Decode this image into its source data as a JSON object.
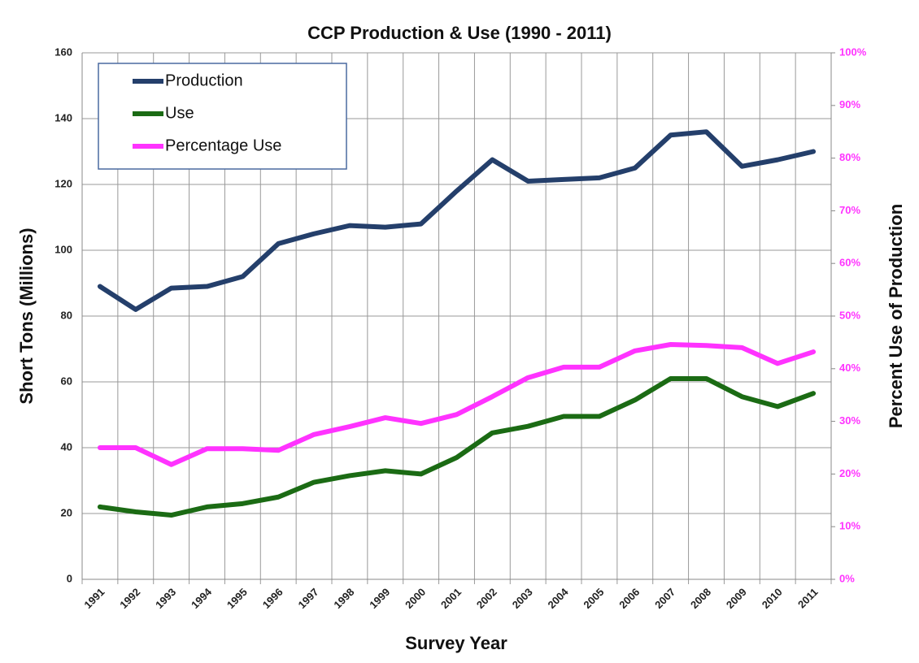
{
  "chart_data": {
    "type": "line",
    "title": "CCP Production & Use (1990 - 2011)",
    "x_label": "Survey Year",
    "y_label": "Short Tons (Millions)",
    "y2_label": "Percent Use of Production",
    "categories": [
      "1991",
      "1992",
      "1993",
      "1994",
      "1995",
      "1996",
      "1997",
      "1998",
      "1999",
      "2000",
      "2001",
      "2002",
      "2003",
      "2004",
      "2005",
      "2006",
      "2007",
      "2008",
      "2009",
      "2010",
      "2011"
    ],
    "series": [
      {
        "name": "Production",
        "color": "#243f6b",
        "values": [
          89,
          82,
          88.5,
          89,
          92,
          102,
          105,
          107.5,
          107,
          108,
          118,
          127.5,
          121,
          121.5,
          122,
          125,
          135,
          136,
          125.5,
          127.5,
          130
        ]
      },
      {
        "name": "Use",
        "color": "#1b6b14",
        "values": [
          22,
          20.5,
          19.5,
          22,
          23,
          25,
          29.5,
          31.5,
          33,
          32,
          37,
          44.5,
          46.5,
          49.5,
          49.5,
          54.5,
          61,
          61,
          55.5,
          52.5,
          56.5
        ]
      },
      {
        "name": "Percentage Use",
        "color": "#ff33ff",
        "axis": "y2",
        "values": [
          25,
          25,
          21.8,
          24.8,
          24.8,
          24.5,
          27.5,
          29,
          30.7,
          29.6,
          31.3,
          34.7,
          38.3,
          40.3,
          40.3,
          43.4,
          44.6,
          44.4,
          44,
          41,
          43.2
        ]
      }
    ],
    "ylim": [
      0,
      160
    ],
    "yticks": [
      0,
      20,
      40,
      60,
      80,
      100,
      120,
      140,
      160
    ],
    "y2lim": [
      0,
      100
    ],
    "y2ticks": [
      {
        "value": 0,
        "label": "0%"
      },
      {
        "value": 10,
        "label": "10%"
      },
      {
        "value": 20,
        "label": "20%"
      },
      {
        "value": 30,
        "label": "30%"
      },
      {
        "value": 40,
        "label": "40%"
      },
      {
        "value": 50,
        "label": "50%"
      },
      {
        "value": 60,
        "label": "60%"
      },
      {
        "value": 70,
        "label": "70%"
      },
      {
        "value": 80,
        "label": "80%"
      },
      {
        "value": 90,
        "label": "90%"
      },
      {
        "value": 100,
        "label": "100%"
      }
    ],
    "y2_color": "#ff33ff",
    "grid": true,
    "legend": "upper-left"
  }
}
